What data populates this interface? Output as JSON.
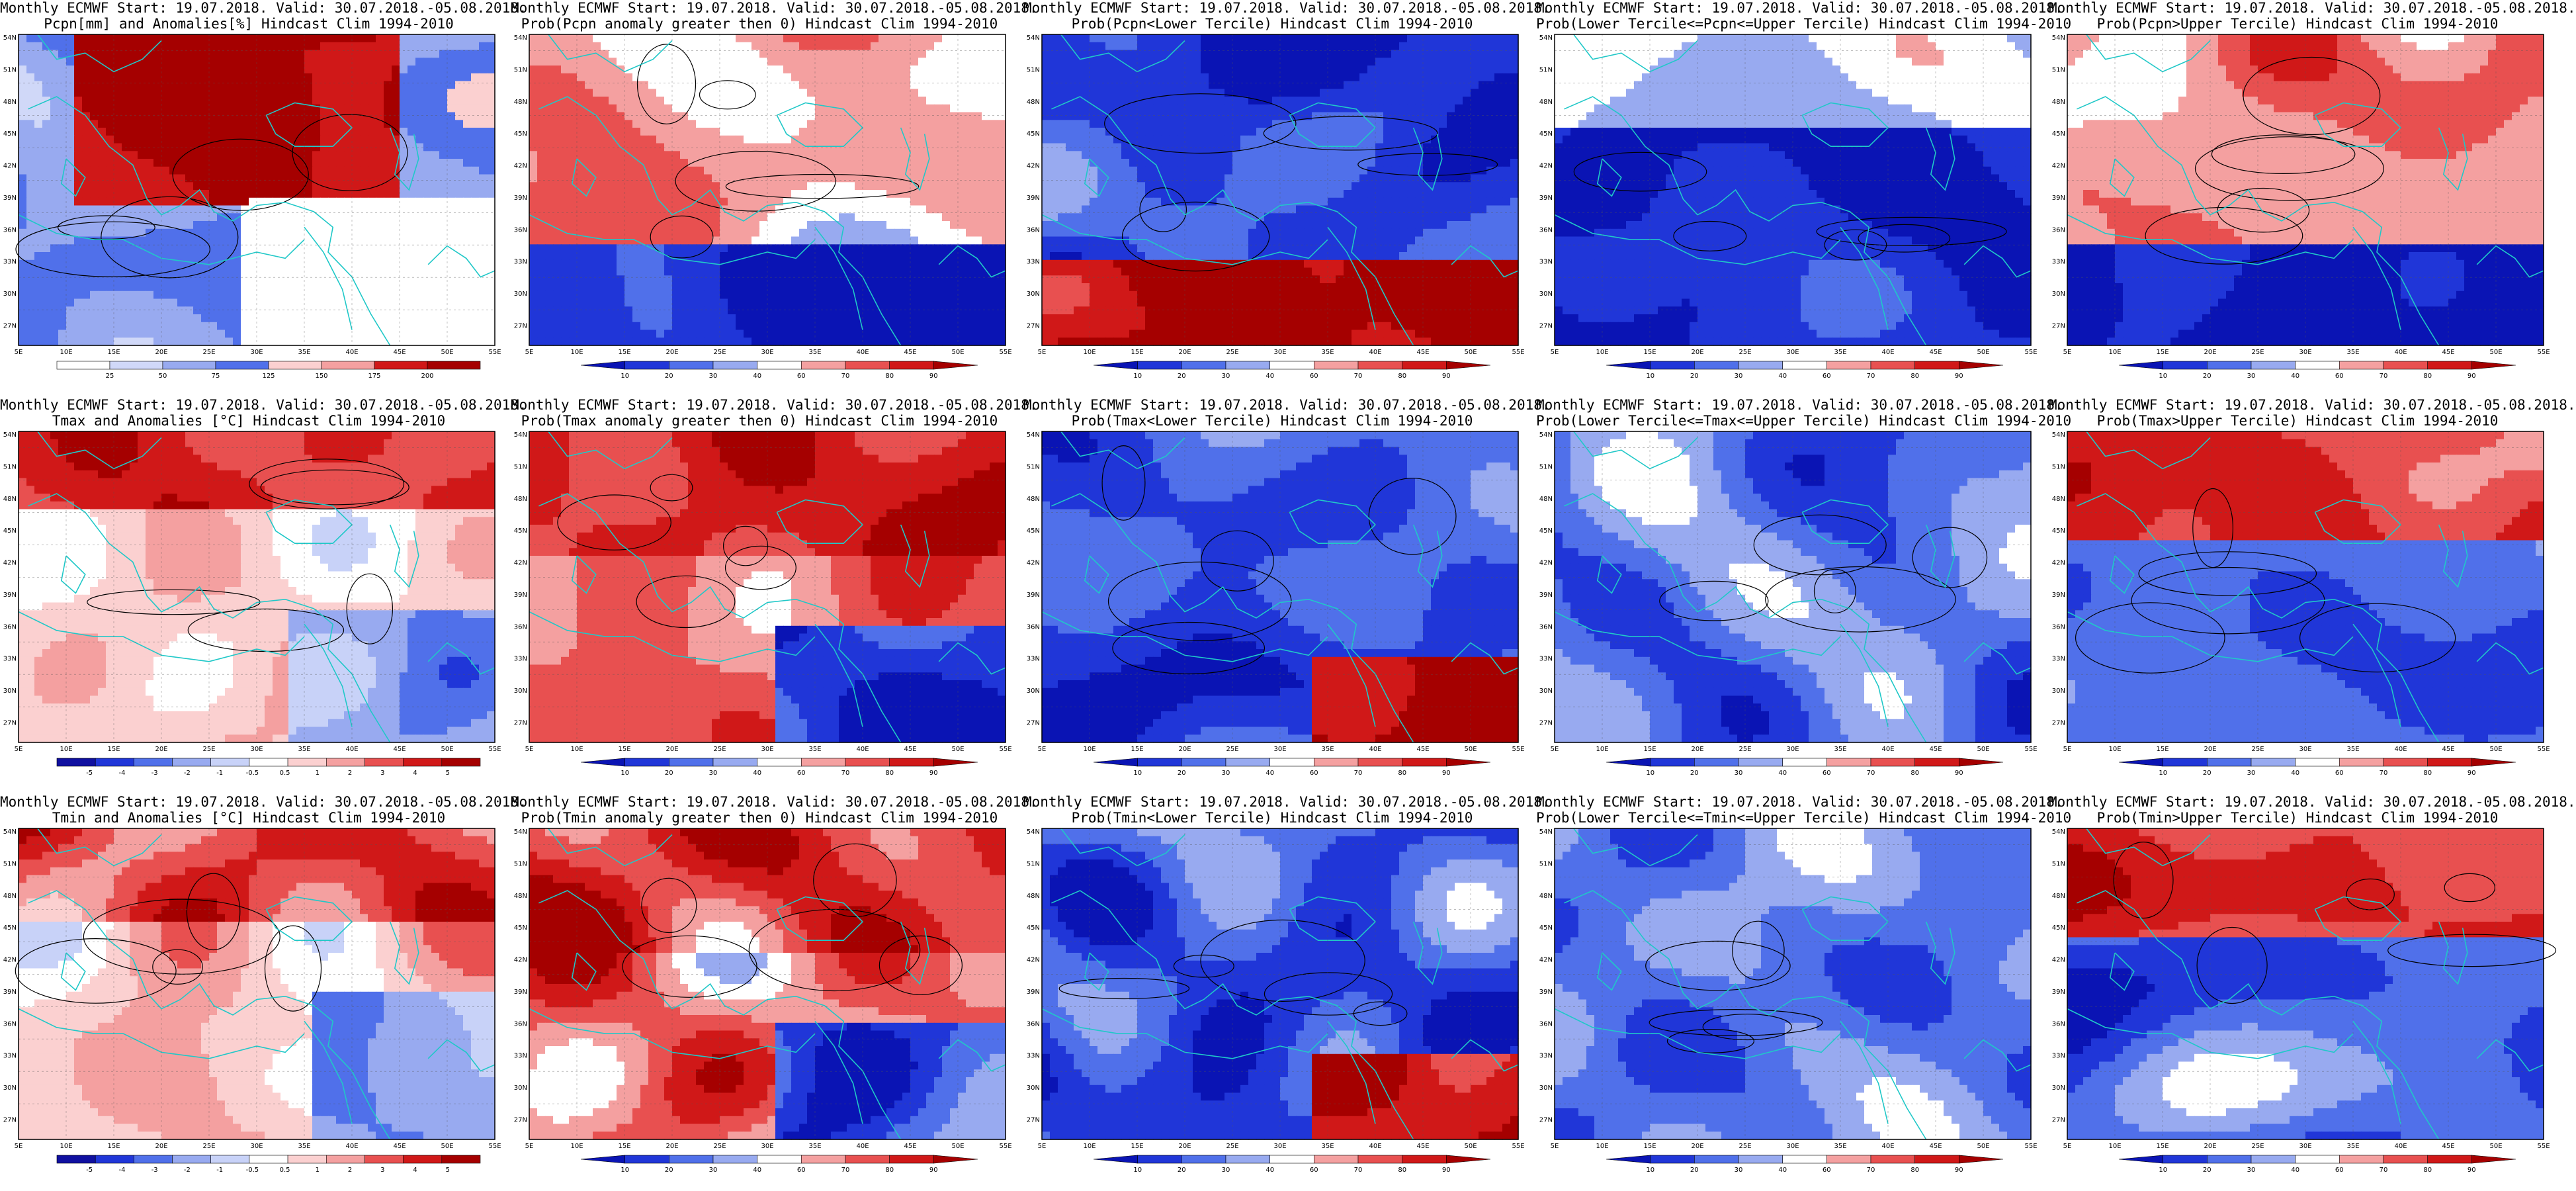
{
  "figure": {
    "rows": [
      {
        "variable": "Pcpn",
        "panels": [
          {
            "title1": "Monthly ECMWF Start: 19.07.2018. Valid: 30.07.2018.-05.08.2018.",
            "title2": "Pcpn[mm] and Anomalies[%] Hindcast Clim 1994-2010",
            "kind": "pcpn_anom",
            "colorbar": [
              "25",
              "50",
              "75",
              "125",
              "150",
              "175",
              "200"
            ]
          },
          {
            "title1": "Monthly ECMWF Start: 19.07.2018. Valid: 30.07.2018.-05.08.2018.",
            "title2": "Prob(Pcpn anomaly greater then 0) Hindcast Clim 1994-2010",
            "kind": "prob_gt0",
            "colorbar": [
              "10",
              "20",
              "30",
              "40",
              "60",
              "70",
              "80",
              "90"
            ]
          },
          {
            "title1": "Monthly ECMWF Start: 19.07.2018. Valid: 30.07.2018.-05.08.2018.",
            "title2": "Prob(Pcpn<Lower Tercile) Hindcast Clim 1994-2010",
            "kind": "prob_lower",
            "colorbar": [
              "10",
              "20",
              "30",
              "40",
              "60",
              "70",
              "80",
              "90"
            ]
          },
          {
            "title1": "Monthly ECMWF Start: 19.07.2018. Valid: 30.07.2018.-05.08.2018.",
            "title2": "Prob(Lower Tercile<=Pcpn<=Upper Tercile) Hindcast Clim 1994-2010",
            "kind": "prob_mid",
            "colorbar": [
              "10",
              "20",
              "30",
              "40",
              "60",
              "70",
              "80",
              "90"
            ]
          },
          {
            "title1": "Monthly ECMWF Start: 19.07.2018. Valid: 30.07.2018.-05.08.2018.",
            "title2": "Prob(Pcpn>Upper Tercile) Hindcast Clim 1994-2010",
            "kind": "prob_upper",
            "colorbar": [
              "10",
              "20",
              "30",
              "40",
              "60",
              "70",
              "80",
              "90"
            ]
          }
        ]
      },
      {
        "variable": "Tmax",
        "panels": [
          {
            "title1": "Monthly ECMWF Start: 19.07.2018. Valid: 30.07.2018.-05.08.2018.",
            "title2": "Tmax and Anomalies [°C] Hindcast Clim 1994-2010",
            "kind": "temp_anom",
            "colorbar": [
              "-5",
              "-4",
              "-3",
              "-2",
              "-1",
              "-0.5",
              "0.5",
              "1",
              "2",
              "3",
              "4",
              "5"
            ]
          },
          {
            "title1": "Monthly ECMWF Start: 19.07.2018. Valid: 30.07.2018.-05.08.2018.",
            "title2": "Prob(Tmax anomaly greater then 0) Hindcast Clim 1994-2010",
            "kind": "prob_gt0",
            "colorbar": [
              "10",
              "20",
              "30",
              "40",
              "60",
              "70",
              "80",
              "90"
            ]
          },
          {
            "title1": "Monthly ECMWF Start: 19.07.2018. Valid: 30.07.2018.-05.08.2018.",
            "title2": "Prob(Tmax<Lower Tercile) Hindcast Clim 1994-2010",
            "kind": "prob_lower",
            "colorbar": [
              "10",
              "20",
              "30",
              "40",
              "60",
              "70",
              "80",
              "90"
            ]
          },
          {
            "title1": "Monthly ECMWF Start: 19.07.2018. Valid: 30.07.2018.-05.08.2018.",
            "title2": "Prob(Lower Tercile<=Tmax<=Upper Tercile) Hindcast Clim 1994-2010",
            "kind": "prob_mid",
            "colorbar": [
              "10",
              "20",
              "30",
              "40",
              "60",
              "70",
              "80",
              "90"
            ]
          },
          {
            "title1": "Monthly ECMWF Start: 19.07.2018. Valid: 30.07.2018.-05.08.2018.",
            "title2": "Prob(Tmax>Upper Tercile) Hindcast Clim 1994-2010",
            "kind": "prob_upper",
            "colorbar": [
              "10",
              "20",
              "30",
              "40",
              "60",
              "70",
              "80",
              "90"
            ]
          }
        ]
      },
      {
        "variable": "Tmin",
        "panels": [
          {
            "title1": "Monthly ECMWF Start: 19.07.2018. Valid: 30.07.2018.-05.08.2018.",
            "title2": "Tmin and Anomalies [°C] Hindcast Clim 1994-2010",
            "kind": "temp_anom",
            "colorbar": [
              "-5",
              "-4",
              "-3",
              "-2",
              "-1",
              "-0.5",
              "0.5",
              "1",
              "2",
              "3",
              "4",
              "5"
            ]
          },
          {
            "title1": "Monthly ECMWF Start: 19.07.2018. Valid: 30.07.2018.-05.08.2018.",
            "title2": "Prob(Tmin anomaly greater then 0) Hindcast Clim 1994-2010",
            "kind": "prob_gt0",
            "colorbar": [
              "10",
              "20",
              "30",
              "40",
              "60",
              "70",
              "80",
              "90"
            ]
          },
          {
            "title1": "Monthly ECMWF Start: 19.07.2018. Valid: 30.07.2018.-05.08.2018.",
            "title2": "Prob(Tmin<Lower Tercile) Hindcast Clim 1994-2010",
            "kind": "prob_lower",
            "colorbar": [
              "10",
              "20",
              "30",
              "40",
              "60",
              "70",
              "80",
              "90"
            ]
          },
          {
            "title1": "Monthly ECMWF Start: 19.07.2018. Valid: 30.07.2018.-05.08.2018.",
            "title2": "Prob(Lower Tercile<=Tmin<=Upper Tercile) Hindcast Clim 1994-2010",
            "kind": "prob_mid",
            "colorbar": [
              "10",
              "20",
              "30",
              "40",
              "60",
              "70",
              "80",
              "90"
            ]
          },
          {
            "title1": "Monthly ECMWF Start: 19.07.2018. Valid: 30.07.2018.-05.08.2018.",
            "title2": "Prob(Tmin>Upper Tercile) Hindcast Clim 1994-2010",
            "kind": "prob_upper",
            "colorbar": [
              "10",
              "20",
              "30",
              "40",
              "60",
              "70",
              "80",
              "90"
            ]
          }
        ]
      }
    ],
    "lat_labels": [
      "54N",
      "51N",
      "48N",
      "45N",
      "42N",
      "39N",
      "36N",
      "33N",
      "30N",
      "27N"
    ],
    "lon_labels": [
      "5E",
      "10E",
      "15E",
      "20E",
      "25E",
      "30E",
      "35E",
      "40E",
      "45E",
      "50E",
      "55E"
    ],
    "colors": {
      "deep_red": "#a50000",
      "red": "#e02020",
      "light_red": "#f4a0a0",
      "pale_red": "#fbd0d0",
      "deep_blue": "#0a14b4",
      "blue": "#3050e6",
      "light_blue": "#98aaf0",
      "pale_blue": "#d0d8f8",
      "coast": "#20c8c8",
      "contour": "#000000"
    }
  }
}
